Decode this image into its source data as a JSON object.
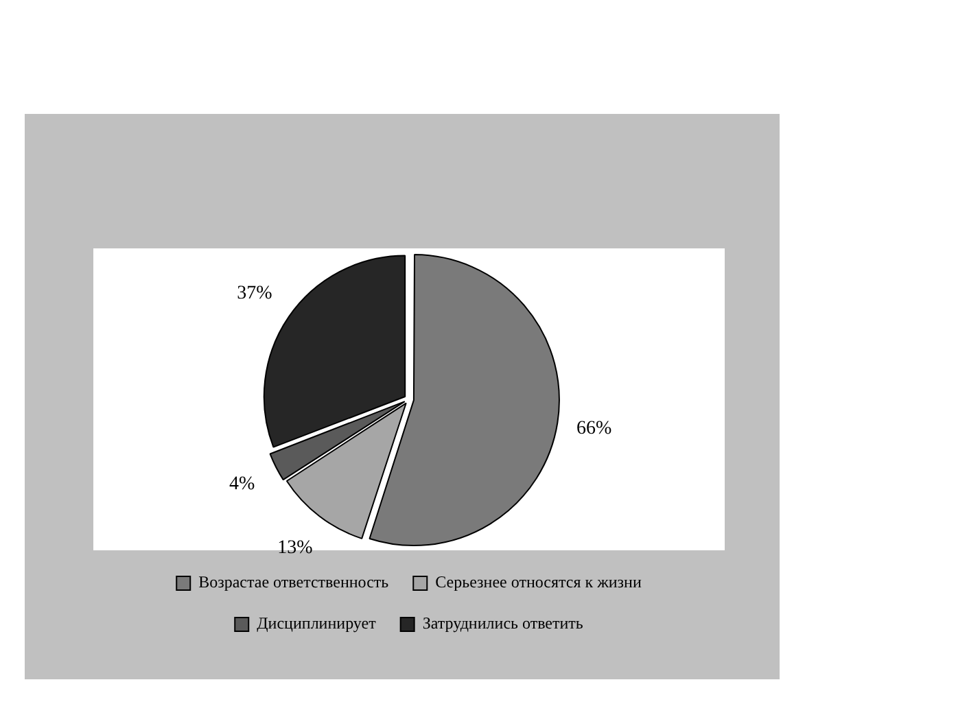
{
  "chart_data": {
    "type": "pie",
    "categories": [
      "Возрастае ответственность",
      "Серьезнее относятся к жизни",
      "Дисциплинирует",
      "Затруднились ответить"
    ],
    "values": [
      66,
      13,
      4,
      37
    ],
    "colors": [
      "#7a7a7a",
      "#a6a6a6",
      "#5a5a5a",
      "#262626"
    ],
    "value_labels": [
      "66%",
      "13%",
      "4%",
      "37%"
    ],
    "legend": "bottom"
  }
}
